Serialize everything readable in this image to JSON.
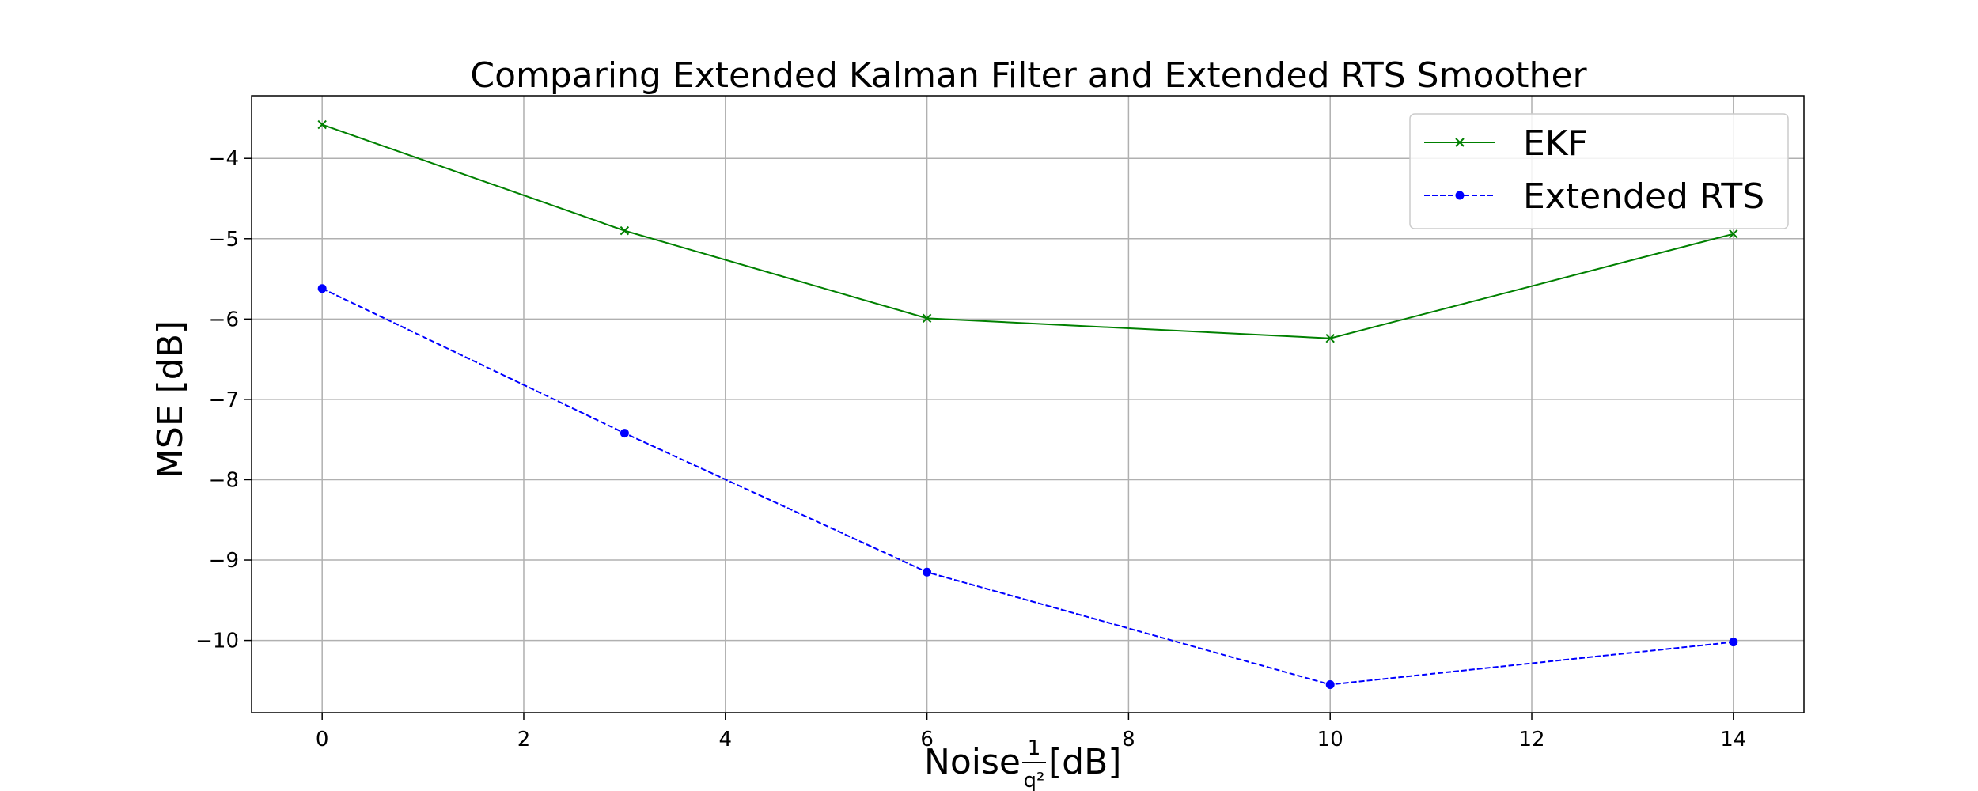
{
  "chart_data": {
    "type": "line",
    "title": "Comparing Extended Kalman Filter and Extended RTS Smoother",
    "xlabel": {
      "prefix": "Noise ",
      "frac_num": "1",
      "frac_den": "q²",
      "suffix": " [dB]"
    },
    "ylabel": "MSE [dB]",
    "x": [
      0,
      3,
      6,
      10,
      14
    ],
    "xticks": [
      "0",
      "2",
      "4",
      "6",
      "8",
      "10",
      "12",
      "14"
    ],
    "yticks": [
      "−4",
      "−5",
      "−6",
      "−7",
      "−8",
      "−9",
      "−10"
    ],
    "xlim": [
      -0.7,
      14.7
    ],
    "ylim": [
      -10.9,
      -3.22
    ],
    "grid": true,
    "legend_position": "top-right",
    "series": [
      {
        "name": "EKF",
        "values": [
          -3.58,
          -4.9,
          -5.99,
          -6.24,
          -4.94
        ],
        "color": "#008000",
        "marker": "x",
        "dash": "solid"
      },
      {
        "name": "Extended RTS",
        "values": [
          -5.62,
          -7.42,
          -9.15,
          -10.55,
          -10.02
        ],
        "color": "#0000ff",
        "marker": "circle",
        "dash": "dashed"
      }
    ]
  }
}
